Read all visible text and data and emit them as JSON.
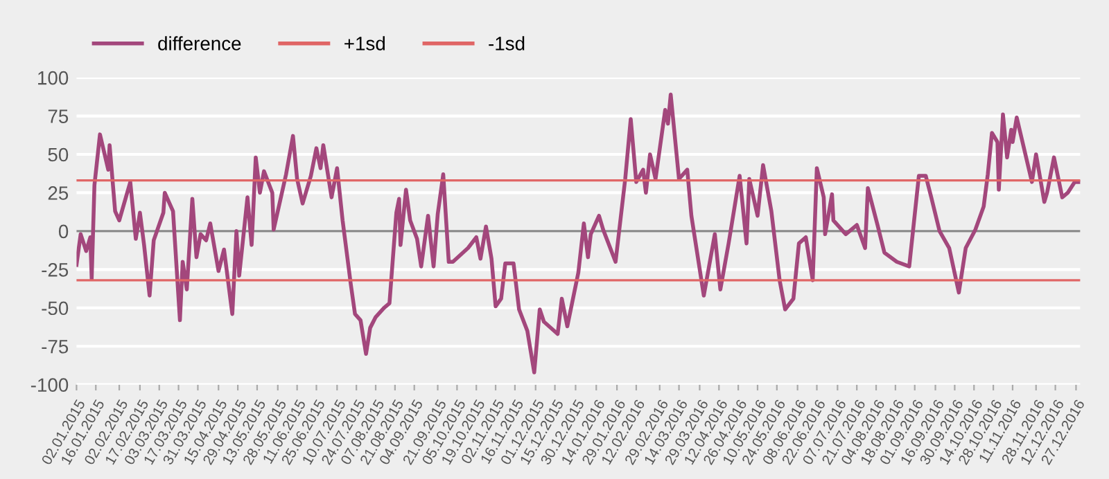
{
  "chart_data": {
    "type": "line",
    "legend": "top left",
    "grid": "y",
    "ylim": [
      -100,
      100
    ],
    "yticks": [
      -100,
      -75,
      -50,
      -25,
      0,
      25,
      50,
      75,
      100
    ],
    "xlim": [
      "2015-01-02",
      "2016-12-30"
    ],
    "xticks": [
      {
        "value": "2015-01-02",
        "label": "02.01.2015"
      },
      {
        "value": "2015-01-16",
        "label": "16.01.2015"
      },
      {
        "value": "2015-02-02",
        "label": "02.02.2015"
      },
      {
        "value": "2015-02-17",
        "label": "17.02.2015"
      },
      {
        "value": "2015-03-03",
        "label": "03.03.2015"
      },
      {
        "value": "2015-03-17",
        "label": "17.03.2015"
      },
      {
        "value": "2015-03-31",
        "label": "31.03.2015"
      },
      {
        "value": "2015-04-15",
        "label": "15.04.2015"
      },
      {
        "value": "2015-04-29",
        "label": "29.04.2015"
      },
      {
        "value": "2015-05-13",
        "label": "13.05.2015"
      },
      {
        "value": "2015-05-28",
        "label": "28.05.2015"
      },
      {
        "value": "2015-06-11",
        "label": "11.06.2015"
      },
      {
        "value": "2015-06-25",
        "label": "25.06.2015"
      },
      {
        "value": "2015-07-10",
        "label": "10.07.2015"
      },
      {
        "value": "2015-07-24",
        "label": "24.07.2015"
      },
      {
        "value": "2015-08-07",
        "label": "07.08.2015"
      },
      {
        "value": "2015-08-21",
        "label": "21.08.2015"
      },
      {
        "value": "2015-09-04",
        "label": "04.09.2015"
      },
      {
        "value": "2015-09-21",
        "label": "21.09.2015"
      },
      {
        "value": "2015-10-05",
        "label": "05.10.2015"
      },
      {
        "value": "2015-10-19",
        "label": "19.10.2015"
      },
      {
        "value": "2015-11-02",
        "label": "02.11.2015"
      },
      {
        "value": "2015-11-16",
        "label": "16.11.2015"
      },
      {
        "value": "2015-12-01",
        "label": "01.12.2015"
      },
      {
        "value": "2015-12-15",
        "label": "15.12.2015"
      },
      {
        "value": "2015-12-30",
        "label": "30.12.2015"
      },
      {
        "value": "2016-01-14",
        "label": "14.01.2016"
      },
      {
        "value": "2016-01-29",
        "label": "29.01.2016"
      },
      {
        "value": "2016-02-12",
        "label": "12.02.2016"
      },
      {
        "value": "2016-02-29",
        "label": "29.02.2016"
      },
      {
        "value": "2016-03-14",
        "label": "14.03.2016"
      },
      {
        "value": "2016-03-29",
        "label": "29.03.2016"
      },
      {
        "value": "2016-04-12",
        "label": "12.04.2016"
      },
      {
        "value": "2016-04-26",
        "label": "26.04.2016"
      },
      {
        "value": "2016-05-10",
        "label": "10.05.2016"
      },
      {
        "value": "2016-05-24",
        "label": "24.05.2016"
      },
      {
        "value": "2016-06-08",
        "label": "08.06.2016"
      },
      {
        "value": "2016-06-22",
        "label": "22.06.2016"
      },
      {
        "value": "2016-07-07",
        "label": "07.07.2016"
      },
      {
        "value": "2016-07-21",
        "label": "21.07.2016"
      },
      {
        "value": "2016-08-04",
        "label": "04.08.2016"
      },
      {
        "value": "2016-08-18",
        "label": "18.08.2016"
      },
      {
        "value": "2016-09-01",
        "label": "01.09.2016"
      },
      {
        "value": "2016-09-16",
        "label": "16.09.2016"
      },
      {
        "value": "2016-09-30",
        "label": "30.09.2016"
      },
      {
        "value": "2016-10-14",
        "label": "14.10.2016"
      },
      {
        "value": "2016-10-28",
        "label": "28.10.2016"
      },
      {
        "value": "2016-11-11",
        "label": "11.11.2016"
      },
      {
        "value": "2016-11-28",
        "label": "28.11.2016"
      },
      {
        "value": "2016-12-12",
        "label": "12.12.2016"
      },
      {
        "value": "2016-12-27",
        "label": "27.12.2016"
      }
    ],
    "ref_lines": [
      {
        "axis": "y",
        "value": 0,
        "color": "#888888"
      }
    ],
    "series": [
      {
        "name": "difference",
        "color": "#a3477c",
        "x": [
          "2015-01-02",
          "2015-01-05",
          "2015-01-09",
          "2015-01-12",
          "2015-01-13",
          "2015-01-15",
          "2015-01-19",
          "2015-01-25",
          "2015-01-26",
          "2015-01-30",
          "2015-02-02",
          "2015-02-10",
          "2015-02-14",
          "2015-02-17",
          "2015-02-20",
          "2015-02-24",
          "2015-02-27",
          "2015-03-06",
          "2015-03-07",
          "2015-03-13",
          "2015-03-18",
          "2015-03-20",
          "2015-03-23",
          "2015-03-27",
          "2015-03-30",
          "2015-04-02",
          "2015-04-06",
          "2015-04-09",
          "2015-04-15",
          "2015-04-19",
          "2015-04-25",
          "2015-04-28",
          "2015-04-30",
          "2015-05-06",
          "2015-05-09",
          "2015-05-12",
          "2015-05-15",
          "2015-05-18",
          "2015-05-24",
          "2015-05-25",
          "2015-06-03",
          "2015-06-08",
          "2015-06-11",
          "2015-06-15",
          "2015-06-21",
          "2015-06-25",
          "2015-06-28",
          "2015-06-30",
          "2015-07-06",
          "2015-07-10",
          "2015-07-14",
          "2015-07-20",
          "2015-07-23",
          "2015-07-27",
          "2015-07-31",
          "2015-08-03",
          "2015-08-07",
          "2015-08-13",
          "2015-08-17",
          "2015-08-22",
          "2015-08-24",
          "2015-08-25",
          "2015-08-29",
          "2015-09-01",
          "2015-09-06",
          "2015-09-09",
          "2015-09-14",
          "2015-09-18",
          "2015-09-21",
          "2015-09-25",
          "2015-09-29",
          "2015-10-02",
          "2015-10-13",
          "2015-10-19",
          "2015-10-22",
          "2015-10-26",
          "2015-10-30",
          "2015-11-02",
          "2015-11-06",
          "2015-11-09",
          "2015-11-15",
          "2015-11-19",
          "2015-11-25",
          "2015-11-30",
          "2015-12-04",
          "2015-12-07",
          "2015-12-17",
          "2015-12-20",
          "2015-12-24",
          "2016-01-01",
          "2016-01-05",
          "2016-01-08",
          "2016-01-10",
          "2016-01-16",
          "2016-01-19",
          "2016-01-28",
          "2016-02-04",
          "2016-02-08",
          "2016-02-12",
          "2016-02-17",
          "2016-02-19",
          "2016-02-22",
          "2016-02-26",
          "2016-03-04",
          "2016-03-06",
          "2016-03-08",
          "2016-03-14",
          "2016-03-20",
          "2016-03-23",
          "2016-04-01",
          "2016-04-09",
          "2016-04-13",
          "2016-04-19",
          "2016-04-27",
          "2016-05-02",
          "2016-05-04",
          "2016-05-10",
          "2016-05-14",
          "2016-05-20",
          "2016-05-26",
          "2016-05-30",
          "2016-06-05",
          "2016-06-09",
          "2016-06-14",
          "2016-06-19",
          "2016-06-22",
          "2016-06-27",
          "2016-06-28",
          "2016-07-03",
          "2016-07-04",
          "2016-07-13",
          "2016-07-21",
          "2016-07-27",
          "2016-07-29",
          "2016-08-05",
          "2016-08-10",
          "2016-08-19",
          "2016-08-28",
          "2016-09-04",
          "2016-09-09",
          "2016-09-13",
          "2016-09-19",
          "2016-09-26",
          "2016-10-03",
          "2016-10-08",
          "2016-10-15",
          "2016-10-21",
          "2016-10-24",
          "2016-10-27",
          "2016-10-31",
          "2016-11-01",
          "2016-11-04",
          "2016-11-07",
          "2016-11-10",
          "2016-11-11",
          "2016-11-14",
          "2016-11-25",
          "2016-11-28",
          "2016-12-04",
          "2016-12-06",
          "2016-12-11",
          "2016-12-17",
          "2016-12-21",
          "2016-12-26",
          "2016-12-29"
        ],
        "values": [
          -22,
          -2,
          -13,
          -4,
          -31,
          30,
          63,
          40,
          56,
          13,
          7,
          32,
          -5,
          12,
          -9,
          -42,
          -6,
          12,
          25,
          13,
          -58,
          -20,
          -38,
          21,
          -17,
          -2,
          -6,
          5,
          -26,
          -12,
          -54,
          0,
          -29,
          22,
          -9,
          48,
          25,
          39,
          25,
          1,
          37,
          62,
          34,
          18,
          36,
          54,
          41,
          56,
          22,
          41,
          7,
          -35,
          -54,
          -58,
          -80,
          -63,
          -56,
          -50,
          -47,
          12,
          21,
          -9,
          27,
          7,
          -5,
          -23,
          10,
          -23,
          11,
          37,
          -20,
          -20,
          -11,
          -4,
          -18,
          3,
          -18,
          -49,
          -44,
          -21,
          -21,
          -51,
          -65,
          -92,
          -51,
          -59,
          -67,
          -44,
          -62,
          -27,
          5,
          -17,
          -2,
          10,
          1,
          -20,
          34,
          73,
          32,
          40,
          25,
          50,
          34,
          79,
          70,
          89,
          34,
          40,
          10,
          -42,
          -2,
          -38,
          -8,
          36,
          -8,
          34,
          10,
          43,
          13,
          -32,
          -51,
          -44,
          -8,
          -4,
          -32,
          41,
          22,
          -2,
          24,
          7,
          -2,
          4,
          -11,
          28,
          4,
          -14,
          -20,
          -23,
          36,
          36,
          22,
          0,
          -11,
          -40,
          -11,
          1,
          16,
          37,
          64,
          58,
          27,
          76,
          48,
          66,
          58,
          74,
          32,
          50,
          19,
          25,
          48,
          22,
          25,
          32,
          32
        ]
      },
      {
        "name": "+1sd",
        "color": "#e06666",
        "x": [
          "2015-01-02",
          "2016-12-30"
        ],
        "values": [
          33,
          33
        ]
      },
      {
        "name": "-1sd",
        "color": "#e06666",
        "x": [
          "2015-01-02",
          "2016-12-30"
        ],
        "values": [
          -32,
          -32
        ]
      }
    ]
  }
}
